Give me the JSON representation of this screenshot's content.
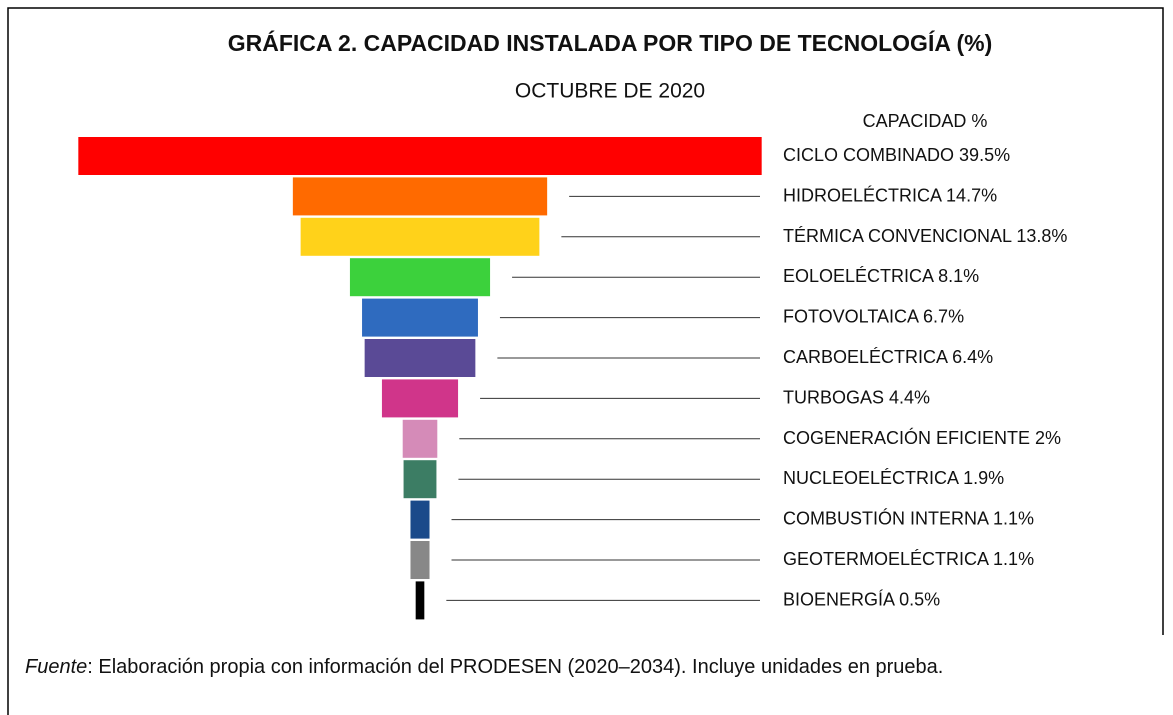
{
  "chart_data": {
    "type": "funnel",
    "title": "GRÁFICA 2. CAPACIDAD INSTALADA POR TIPO DE TECNOLOGÍA (%)",
    "subtitle": "OCTUBRE DE 2020",
    "legend_title": "CAPACIDAD %",
    "categories": [
      "CICLO COMBINADO",
      "HIDROELÉCTRICA",
      "TÉRMICA CONVENCIONAL",
      "EOLOELÉCTRICA",
      "FOTOVOLTAICA",
      "CARBOELÉCTRICA",
      "TURBOGAS",
      "COGENERACIÓN EFICIENTE",
      "NUCLEOELÉCTRICA",
      "COMBUSTIÓN INTERNA",
      "GEOTERMOELÉCTRICA",
      "BIOENERGÍA"
    ],
    "values": [
      39.5,
      14.7,
      13.8,
      8.1,
      6.7,
      6.4,
      4.4,
      2,
      1.9,
      1.1,
      1.1,
      0.5
    ],
    "value_labels": [
      "39.5%",
      "14.7%",
      "13.8%",
      "8.1%",
      "6.7%",
      "6.4%",
      "4.4%",
      "2%",
      "1.9%",
      "1.1%",
      "1.1%",
      "0.5%"
    ],
    "colors": [
      "#ff0000",
      "#ff6a00",
      "#ffd21a",
      "#3cd13c",
      "#2f6bbf",
      "#5a4a96",
      "#d0358a",
      "#d58bb8",
      "#3c7d64",
      "#1a4a8a",
      "#888888",
      "#000000"
    ]
  },
  "footer": {
    "source_label": "Fuente",
    "source_text": ": Elaboración propia con información del PRODESEN (2020–2034). Incluye unidades en prueba."
  }
}
